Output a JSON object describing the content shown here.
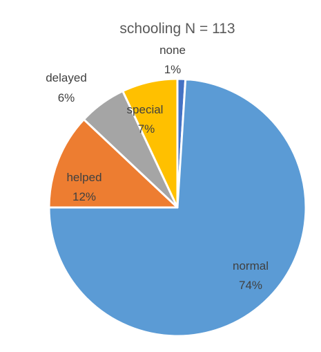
{
  "chart_data": {
    "type": "pie",
    "title": "schooling N = 113",
    "slices": [
      {
        "label": "none",
        "value": 1,
        "pct_label": "1%",
        "color": "#4472C4"
      },
      {
        "label": "normal",
        "value": 74,
        "pct_label": "74%",
        "color": "#5B9BD5"
      },
      {
        "label": "helped",
        "value": 12,
        "pct_label": "12%",
        "color": "#ED7D31"
      },
      {
        "label": "delayed",
        "value": 6,
        "pct_label": "6%",
        "color": "#A5A5A5"
      },
      {
        "label": "special",
        "value": 7,
        "pct_label": "7%",
        "color": "#FFC000"
      }
    ],
    "legend": "none",
    "slice_border_color": "#FFFFFF"
  }
}
